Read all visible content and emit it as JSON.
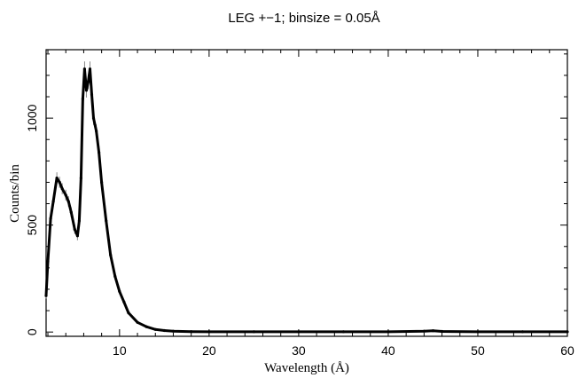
{
  "chart_data": {
    "type": "line",
    "title": "LEG +−1; binsize = 0.05Å",
    "xlabel": "Wavelength (Å)",
    "ylabel": "Counts/bin",
    "xlim": [
      1.8,
      60
    ],
    "ylim": [
      -20,
      1320
    ],
    "x_ticks": [
      10,
      20,
      30,
      40,
      50,
      60
    ],
    "x_tick_labels": [
      "10",
      "20",
      "30",
      "40",
      "50",
      "60"
    ],
    "y_ticks": [
      0,
      500,
      1000
    ],
    "y_tick_labels": [
      "0",
      "500",
      "1000"
    ],
    "grid": false,
    "error_bars": true,
    "series": [
      {
        "x": [
          1.8,
          2.0,
          2.3,
          2.6,
          3.0,
          3.3,
          3.6,
          4.0,
          4.3,
          4.6,
          5.0,
          5.3,
          5.5,
          5.7,
          5.9,
          6.1,
          6.3,
          6.5,
          6.7,
          6.9,
          7.1,
          7.4,
          7.7,
          8.0,
          8.5,
          9.0,
          9.5,
          10.0,
          10.5,
          11.0,
          12.0,
          13.0,
          14.0,
          15.0,
          16.0,
          18.0,
          20.0,
          25.0,
          30.0,
          35.0,
          40.0,
          44.0,
          45.0,
          46.0,
          50.0,
          55.0,
          60.0
        ],
        "y": [
          170,
          330,
          530,
          610,
          720,
          700,
          670,
          640,
          610,
          560,
          480,
          450,
          520,
          720,
          1090,
          1230,
          1130,
          1170,
          1230,
          1110,
          1000,
          940,
          840,
          700,
          520,
          360,
          260,
          190,
          140,
          90,
          45,
          25,
          12,
          7,
          4,
          2,
          1,
          1,
          1,
          1,
          1,
          4,
          6,
          3,
          1,
          1,
          1
        ]
      }
    ]
  }
}
